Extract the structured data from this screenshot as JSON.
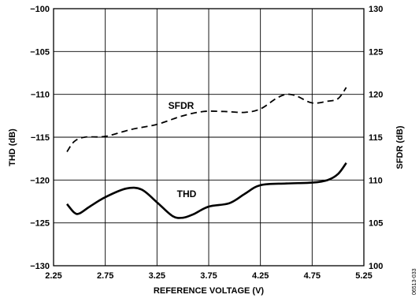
{
  "chart_data": {
    "type": "line",
    "xlabel": "REFERENCE VOLTAGE (V)",
    "ylabel": "THD (dB)",
    "y2label": "SFDR (dB)",
    "xlim": [
      2.25,
      5.25
    ],
    "ylim": [
      -130,
      -100
    ],
    "y2lim": [
      100,
      130
    ],
    "x_ticks": [
      "2.25",
      "2.75",
      "3.25",
      "3.75",
      "4.25",
      "4.75",
      "5.25"
    ],
    "y_ticks": [
      "−130",
      "−125",
      "−120",
      "−115",
      "−110",
      "−105",
      "−100"
    ],
    "y2_ticks": [
      "100",
      "105",
      "110",
      "115",
      "120",
      "125",
      "130"
    ],
    "grid": true,
    "series": [
      {
        "name": "SFDR",
        "axis": "right",
        "line_style": "dashed",
        "color": "#000000",
        "x": [
          2.38,
          2.45,
          2.55,
          2.75,
          3.0,
          3.25,
          3.5,
          3.7,
          3.9,
          4.1,
          4.25,
          4.4,
          4.5,
          4.6,
          4.75,
          4.9,
          5.0,
          5.08
        ],
        "y": [
          113.3,
          114.5,
          115.0,
          115.1,
          115.9,
          116.5,
          117.5,
          118.0,
          118.0,
          117.9,
          118.3,
          119.5,
          120.0,
          119.8,
          119.0,
          119.2,
          119.5,
          120.8
        ]
      },
      {
        "name": "THD",
        "axis": "left",
        "line_style": "solid",
        "color": "#000000",
        "x": [
          2.38,
          2.45,
          2.5,
          2.6,
          2.75,
          2.95,
          3.1,
          3.25,
          3.4,
          3.5,
          3.6,
          3.75,
          3.95,
          4.1,
          4.25,
          4.5,
          4.75,
          4.9,
          5.0,
          5.08
        ],
        "y": [
          -122.8,
          -123.8,
          -123.9,
          -123.1,
          -122.0,
          -121.0,
          -121.1,
          -122.6,
          -124.2,
          -124.4,
          -124.0,
          -123.1,
          -122.7,
          -121.6,
          -120.6,
          -120.4,
          -120.3,
          -120.0,
          -119.3,
          -118.0
        ]
      }
    ],
    "annotations": [
      "SFDR",
      "THD"
    ],
    "figure_id": "06513-033"
  }
}
